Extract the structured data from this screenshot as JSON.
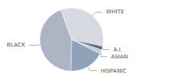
{
  "chart_data": {
    "type": "pie",
    "categories": [
      "WHITE",
      "A.I.",
      "ASIAN",
      "HISPANIC",
      "BLACK"
    ],
    "values": [
      34,
      2,
      2,
      18,
      44
    ],
    "colors": [
      "#d6dae0",
      "#5b6b80",
      "#bccbdc",
      "#8fa2b9",
      "#abb5c3"
    ]
  }
}
